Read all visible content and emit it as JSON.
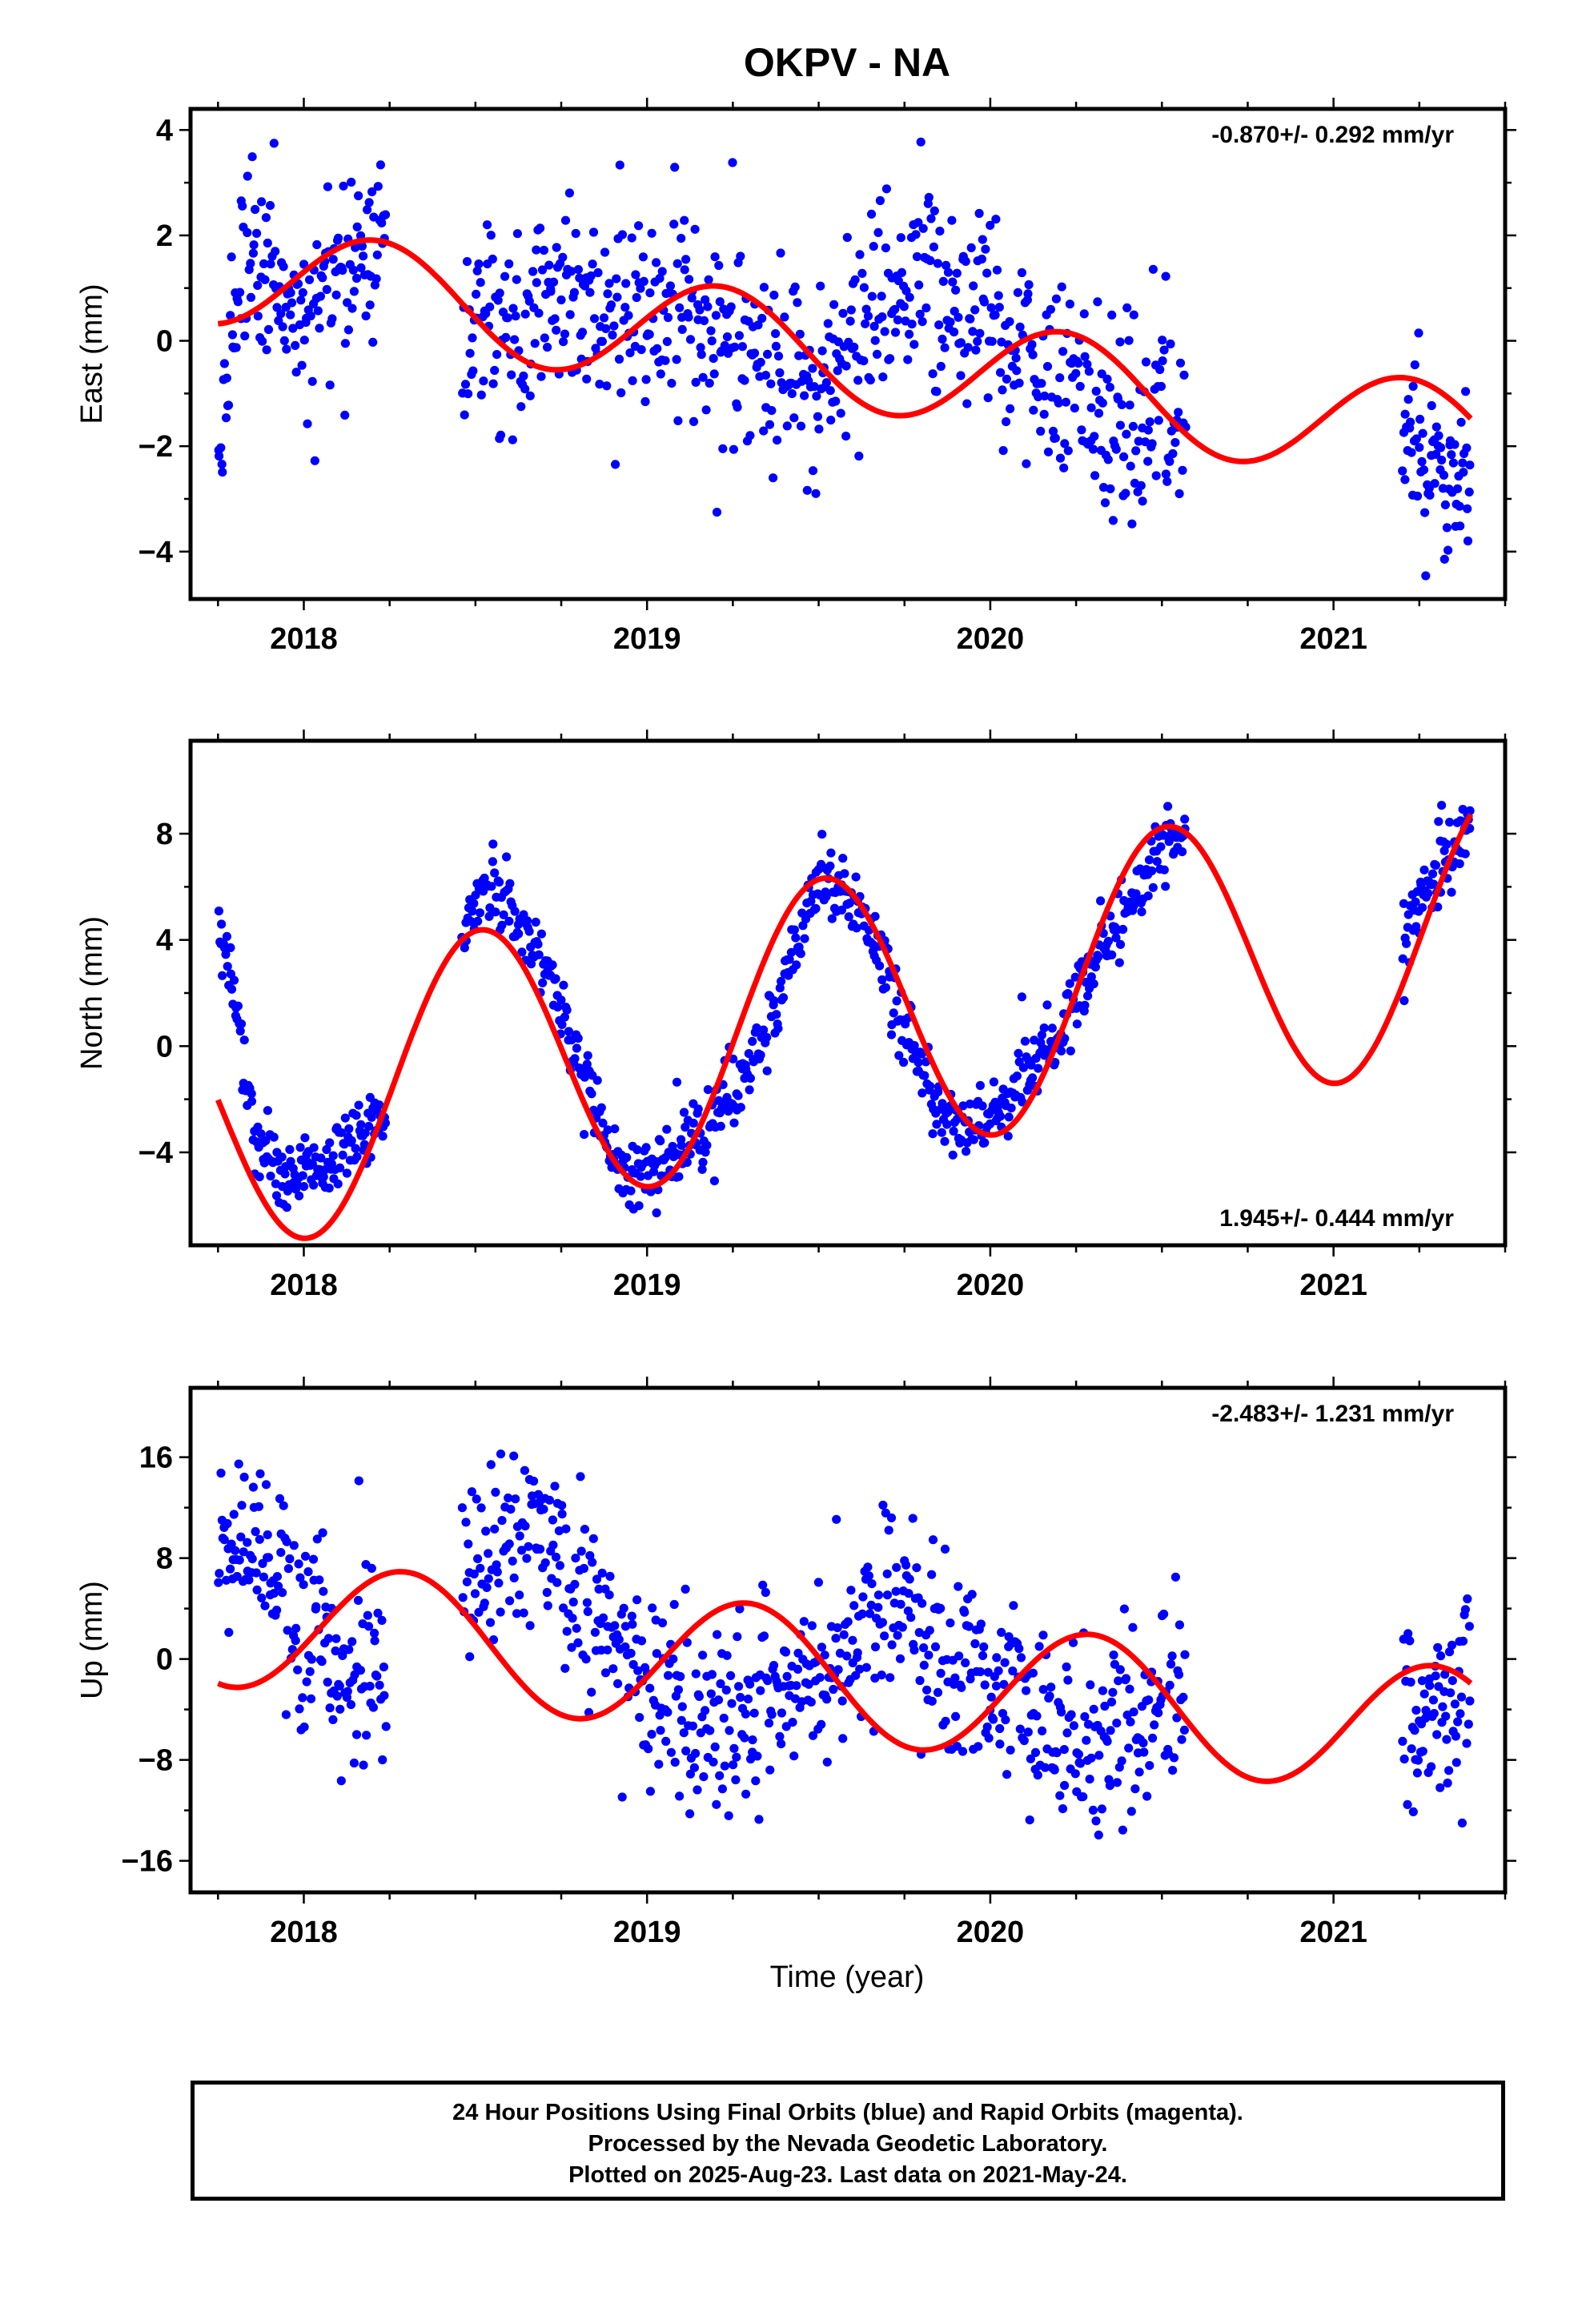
{
  "title": "OKPV - NA",
  "xlabel": "Time (year)",
  "footer": {
    "line1": "24 Hour Positions Using Final Orbits (blue) and Rapid Orbits (magenta).",
    "line2": "Processed by the Nevada Geodetic Laboratory.",
    "line3": "Plotted on 2025-Aug-23. Last data on 2021-May-24."
  },
  "colors": {
    "points": "#0000ff",
    "fit": "#ff0000",
    "axes": "#000000"
  },
  "chart_data": [
    {
      "type": "scatter",
      "ylabel": "East (mm)",
      "rate": "-0.870+/- 0.292 mm/yr",
      "rate_position": "top-right",
      "xlim": [
        2017.67,
        2021.5
      ],
      "ylim": [
        -4.9,
        4.4
      ],
      "xticks": [
        2018,
        2019,
        2020,
        2021
      ],
      "yticks": [
        -4,
        -2,
        0,
        2,
        4
      ],
      "grid": false,
      "fit_model": {
        "offset": -0.22,
        "slope": -0.87,
        "t0": 2019.5,
        "cos": 0.22,
        "sin": 0.98
      },
      "fit_range": [
        2017.75,
        2021.4
      ],
      "gaps": [
        [
          2018.25,
          2018.45
        ],
        [
          2020.57,
          2021.2
        ]
      ],
      "series": [
        {
          "name": "",
          "segments": [
            {
              "range": [
                2017.75,
                2018.24
              ],
              "anchors": [
                [
                  2017.75,
                  -2.0
                ],
                [
                  2017.82,
                  1.6
                ],
                [
                  2018.0,
                  0.8
                ],
                [
                  2018.12,
                  1.2
                ],
                [
                  2018.24,
                  2.3
                ]
              ],
              "noise": 0.85,
              "n": 160
            },
            {
              "range": [
                2018.46,
                2020.57
              ],
              "anchors": [
                [
                  2018.46,
                  0.1
                ],
                [
                  2018.8,
                  0.7
                ],
                [
                  2019.1,
                  0.4
                ],
                [
                  2019.5,
                  -0.8
                ],
                [
                  2019.8,
                  1.3
                ],
                [
                  2020.0,
                  0.5
                ],
                [
                  2020.2,
                  -1.0
                ],
                [
                  2020.57,
                  -1.7
                ]
              ],
              "noise": 0.9,
              "n": 650
            },
            {
              "range": [
                2021.2,
                2021.4
              ],
              "anchors": [
                [
                  2021.2,
                  -2.0
                ],
                [
                  2021.4,
                  -2.6
                ]
              ],
              "noise": 0.8,
              "n": 70
            }
          ]
        }
      ]
    },
    {
      "type": "scatter",
      "ylabel": "North (mm)",
      "rate": "1.945+/- 0.444 mm/yr",
      "rate_position": "bottom-right",
      "xlim": [
        2017.67,
        2021.5
      ],
      "ylim": [
        -7.5,
        11.5
      ],
      "xticks": [
        2018,
        2019,
        2020,
        2021
      ],
      "yticks": [
        -4,
        0,
        4,
        8
      ],
      "grid": false,
      "fit_model": {
        "offset": 0.98,
        "slope": 1.945,
        "t0": 2019.5,
        "cos": -5.3,
        "sin": -0.4
      },
      "fit_range": [
        2017.75,
        2021.4
      ],
      "gaps": [
        [
          2018.25,
          2018.45
        ],
        [
          2020.57,
          2021.2
        ]
      ],
      "series": [
        {
          "name": "",
          "segments": [
            {
              "range": [
                2017.75,
                2018.24
              ],
              "anchors": [
                [
                  2017.75,
                  4.8
                ],
                [
                  2017.8,
                  2.0
                ],
                [
                  2017.86,
                  -3.8
                ],
                [
                  2017.95,
                  -5.0
                ],
                [
                  2018.05,
                  -4.5
                ],
                [
                  2018.15,
                  -3.5
                ],
                [
                  2018.24,
                  -2.2
                ]
              ],
              "noise": 0.65,
              "n": 160
            },
            {
              "range": [
                2018.46,
                2020.57
              ],
              "anchors": [
                [
                  2018.46,
                  4.2
                ],
                [
                  2018.55,
                  6.2
                ],
                [
                  2018.7,
                  3.0
                ],
                [
                  2018.85,
                  -2.5
                ],
                [
                  2018.95,
                  -5.5
                ],
                [
                  2019.05,
                  -4.0
                ],
                [
                  2019.2,
                  -3.0
                ],
                [
                  2019.35,
                  0.5
                ],
                [
                  2019.5,
                  6.5
                ],
                [
                  2019.6,
                  5.5
                ],
                [
                  2019.75,
                  1.0
                ],
                [
                  2019.85,
                  -2.5
                ],
                [
                  2020.0,
                  -3.0
                ],
                [
                  2020.2,
                  0.5
                ],
                [
                  2020.35,
                  4.0
                ],
                [
                  2020.5,
                  7.5
                ],
                [
                  2020.57,
                  8.2
                ]
              ],
              "noise": 0.65,
              "n": 650
            },
            {
              "range": [
                2021.2,
                2021.4
              ],
              "anchors": [
                [
                  2021.2,
                  4.0
                ],
                [
                  2021.3,
                  6.5
                ],
                [
                  2021.4,
                  8.5
                ]
              ],
              "noise": 0.7,
              "n": 70
            }
          ]
        }
      ]
    },
    {
      "type": "scatter",
      "ylabel": "Up (mm)",
      "rate": "-2.483+/- 1.231 mm/yr",
      "rate_position": "top-right",
      "xlim": [
        2017.67,
        2021.5
      ],
      "ylim": [
        -18.5,
        21.5
      ],
      "xticks": [
        2018,
        2019,
        2020,
        2021
      ],
      "yticks": [
        -16,
        -8,
        0,
        8,
        16
      ],
      "grid": false,
      "fit_model": {
        "offset": -1.28,
        "slope": -2.483,
        "t0": 2019.5,
        "cos": -1.4,
        "sin": 5.0
      },
      "fit_range": [
        2017.75,
        2021.4
      ],
      "gaps": [
        [
          2018.25,
          2018.45
        ],
        [
          2020.57,
          2021.2
        ]
      ],
      "series": [
        {
          "name": "",
          "segments": [
            {
              "range": [
                2017.75,
                2018.24
              ],
              "anchors": [
                [
                  2017.75,
                  9.0
                ],
                [
                  2017.9,
                  7.0
                ],
                [
                  2018.05,
                  0.0
                ],
                [
                  2018.24,
                  -1.0
                ]
              ],
              "noise": 3.6,
              "n": 160
            },
            {
              "range": [
                2018.46,
                2020.57
              ],
              "anchors": [
                [
                  2018.46,
                  6.0
                ],
                [
                  2018.65,
                  10.0
                ],
                [
                  2018.8,
                  6.0
                ],
                [
                  2019.0,
                  -2.0
                ],
                [
                  2019.2,
                  -4.5
                ],
                [
                  2019.4,
                  -4.0
                ],
                [
                  2019.7,
                  5.0
                ],
                [
                  2019.9,
                  -1.0
                ],
                [
                  2020.1,
                  -4.0
                ],
                [
                  2020.3,
                  -7.0
                ],
                [
                  2020.57,
                  -1.0
                ]
              ],
              "noise": 3.6,
              "n": 650
            },
            {
              "range": [
                2021.2,
                2021.4
              ],
              "anchors": [
                [
                  2021.2,
                  -3.0
                ],
                [
                  2021.4,
                  -4.0
                ]
              ],
              "noise": 4.0,
              "n": 70
            }
          ]
        }
      ]
    }
  ]
}
